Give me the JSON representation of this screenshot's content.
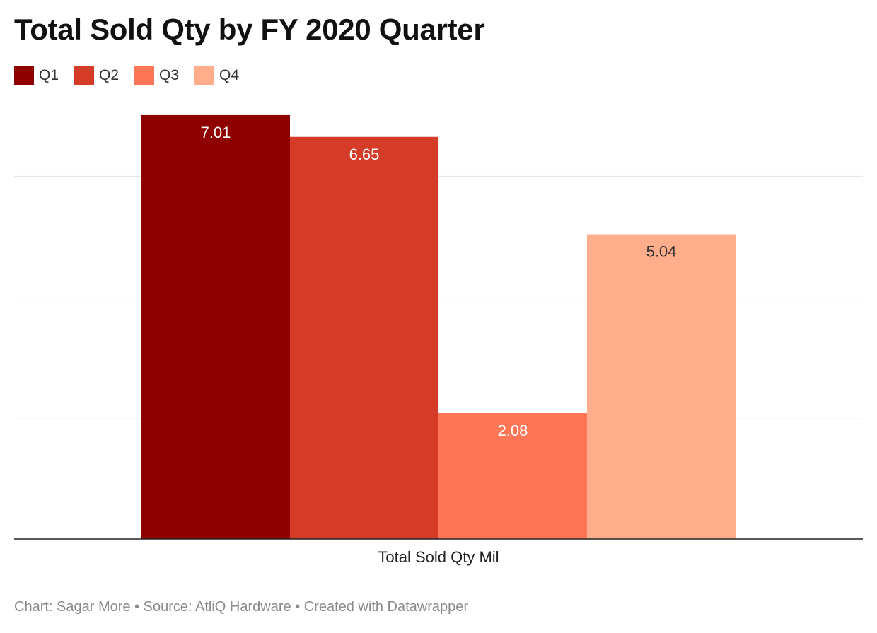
{
  "title": "Total Sold Qty by FY 2020 Quarter",
  "legend": [
    {
      "label": "Q1",
      "color": "#8f0000"
    },
    {
      "label": "Q2",
      "color": "#d43c28"
    },
    {
      "label": "Q3",
      "color": "#ff7657"
    },
    {
      "label": "Q4",
      "color": "#ffad8a"
    }
  ],
  "chart_data": {
    "type": "bar",
    "categories": [
      "Total Sold Qty Mil"
    ],
    "series": [
      {
        "name": "Q1",
        "values": [
          7.01
        ],
        "color": "#8f0000",
        "label_color": "#ffffff"
      },
      {
        "name": "Q2",
        "values": [
          6.65
        ],
        "color": "#d43c28",
        "label_color": "#ffffff"
      },
      {
        "name": "Q3",
        "values": [
          2.08
        ],
        "color": "#ff7657",
        "label_color": "#ffffff"
      },
      {
        "name": "Q4",
        "values": [
          5.04
        ],
        "color": "#ffad8a",
        "label_color": "#333333"
      }
    ],
    "xlabel": "",
    "ylabel": "",
    "ylim": [
      0,
      7
    ],
    "gridlines": [
      2,
      4,
      6
    ],
    "grid": true,
    "legend_position": "top-left",
    "data_labels": [
      "7.01",
      "6.65",
      "2.08",
      "5.04"
    ]
  },
  "footer": "Chart: Sagar More • Source: AtliQ Hardware • Created with Datawrapper"
}
